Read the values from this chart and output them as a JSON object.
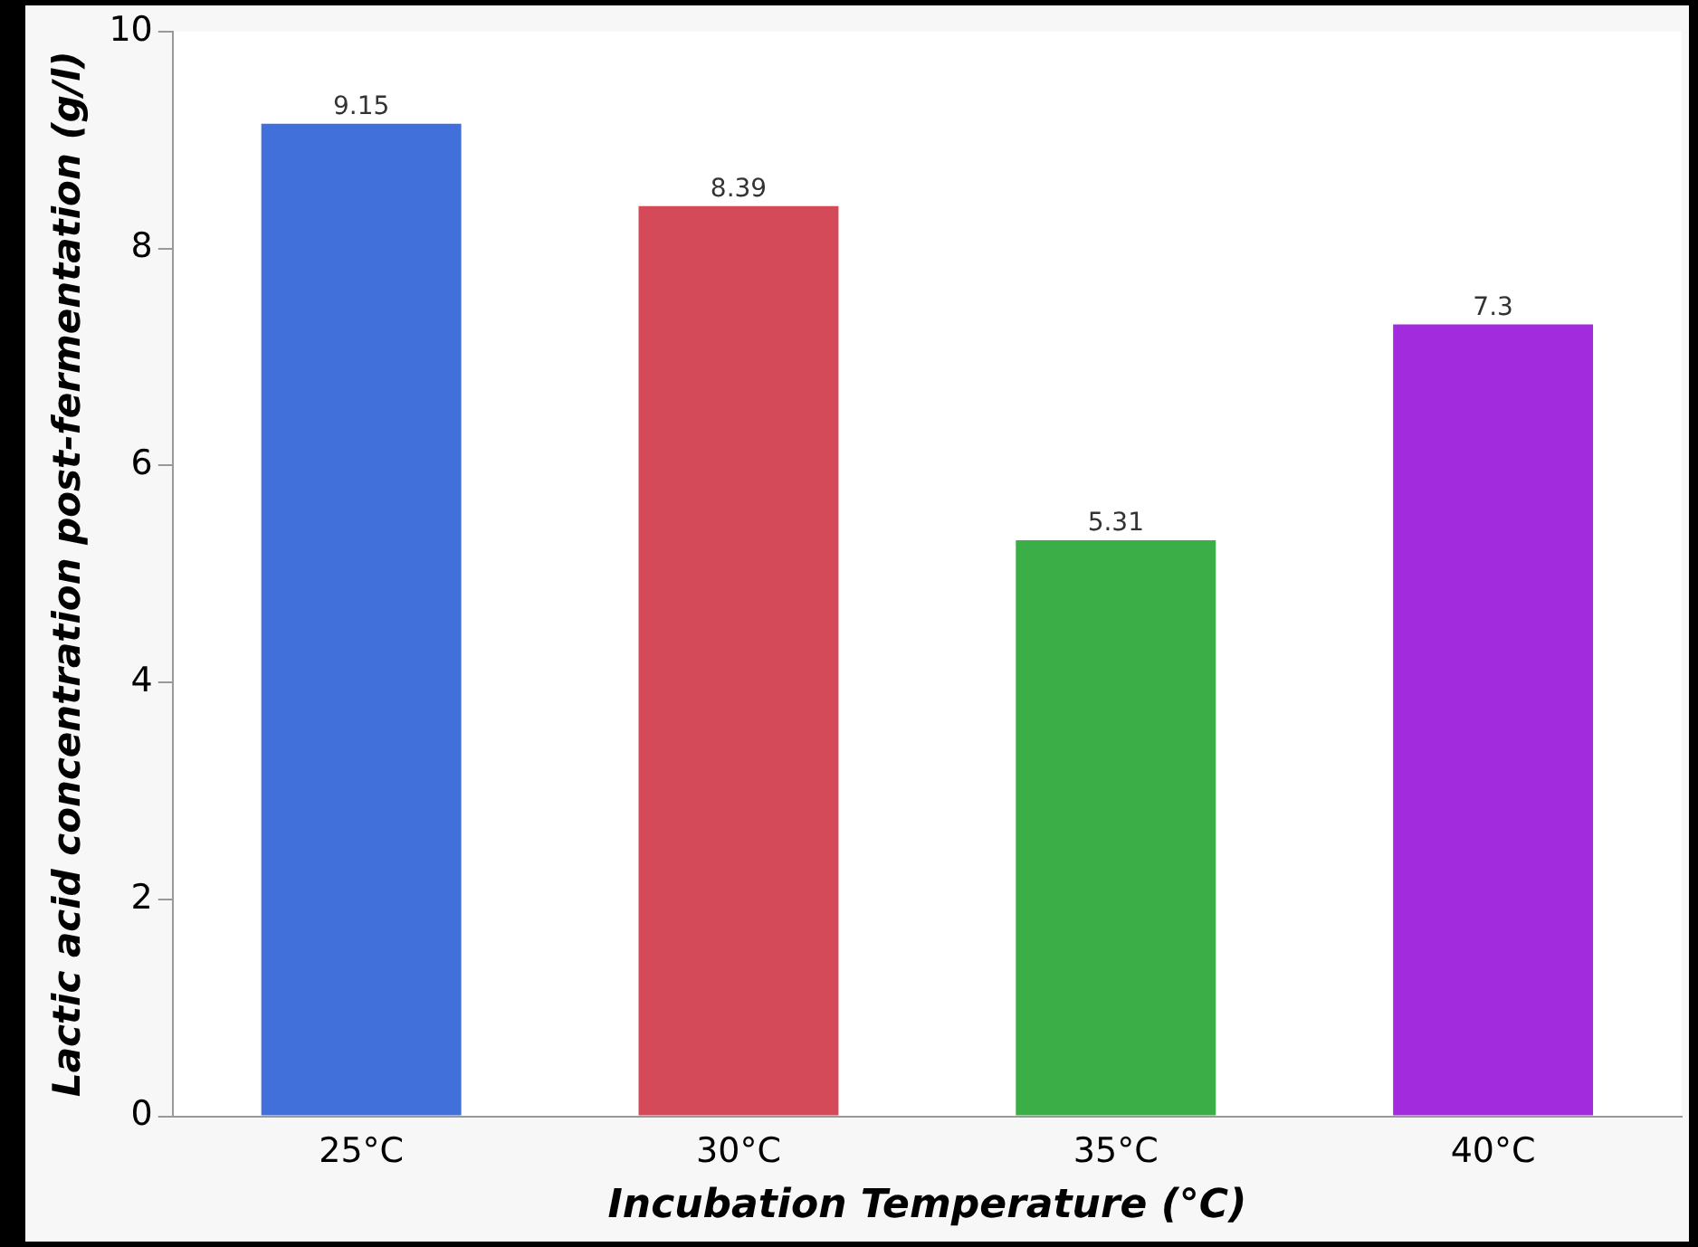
{
  "chart_data": {
    "type": "bar",
    "xlabel": "Incubation Temperature (°C)",
    "ylabel": "Lactic acid concentration post-fermentation (g/l)",
    "categories": [
      "25°C",
      "30°C",
      "35°C",
      "40°C"
    ],
    "values": [
      9.15,
      8.39,
      5.31,
      7.3
    ],
    "colors": [
      "#4170da",
      "#d44a58",
      "#3cae47",
      "#a22bdd"
    ],
    "ylim": [
      0,
      10
    ],
    "yticks": [
      0,
      2,
      4,
      6,
      8,
      10
    ],
    "data_labels": true,
    "grid": false,
    "legend": false
  }
}
